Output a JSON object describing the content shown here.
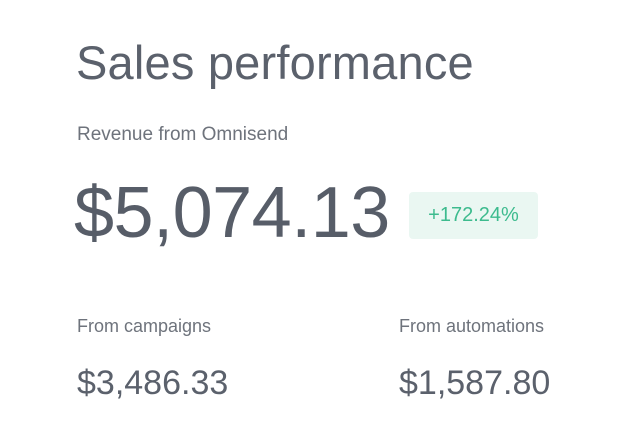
{
  "card": {
    "title": "Sales performance",
    "subtitle": "Revenue from Omnisend",
    "total_revenue": "$5,074.13",
    "change_badge": "+172.24%",
    "stats": [
      {
        "label": "From campaigns",
        "value": "$3,486.33"
      },
      {
        "label": "From automations",
        "value": "$1,587.80"
      }
    ]
  },
  "colors": {
    "text_primary": "#5b616c",
    "text_secondary": "#6e737c",
    "badge_text": "#3dbb8e",
    "badge_background": "#eaf7f2",
    "background": "#ffffff"
  }
}
